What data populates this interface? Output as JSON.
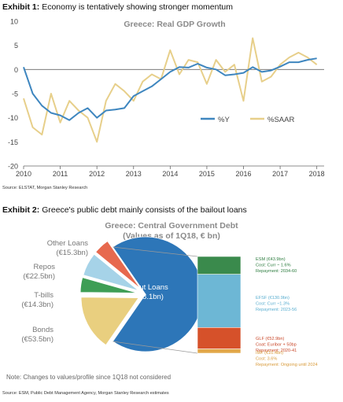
{
  "exhibit1": {
    "label": "Exhibit 1:",
    "caption": "Economy is tentatively showing stronger momentum",
    "source": "Source: ELSTAT, Morgan Stanley Research"
  },
  "exhibit2": {
    "label": "Exhibit 2:",
    "caption": "Greece's public debt mainly consists of the bailout loans",
    "source": "Source: ESM, Public Debt Management Agency, Morgan Stanley Research estimates",
    "note": "Note: Changes to values/profile since 1Q18 not considered"
  },
  "colors": {
    "y": "#3e86bf",
    "saar": "#e7cf8a",
    "axis_text": "#444444",
    "pie_bailout": "#2d76b8",
    "pie_bonds": "#e9cf7f",
    "pie_tbills": "#3e9e55",
    "pie_repos": "#a6d3e8",
    "pie_other": "#e7694e",
    "bar_esm": "#3a8a4c",
    "bar_efsf": "#6db7d5",
    "bar_glf": "#d6512a",
    "bar_imf": "#e2a84a"
  },
  "chart_data": [
    {
      "type": "line",
      "title": "Greece: Real GDP Growth",
      "xlim": [
        2010,
        2018.2
      ],
      "ylim": [
        -20,
        10
      ],
      "x_ticks": [
        2010,
        2011,
        2012,
        2013,
        2014,
        2015,
        2016,
        2017,
        2018
      ],
      "y_ticks": [
        -20,
        -15,
        -10,
        -5,
        0,
        5,
        10
      ],
      "legend_position": "lower-right",
      "x": [
        2010.0,
        2010.25,
        2010.5,
        2010.75,
        2011.0,
        2011.25,
        2011.5,
        2011.75,
        2012.0,
        2012.25,
        2012.5,
        2012.75,
        2013.0,
        2013.25,
        2013.5,
        2013.75,
        2014.0,
        2014.25,
        2014.5,
        2014.75,
        2015.0,
        2015.25,
        2015.5,
        2015.75,
        2016.0,
        2016.25,
        2016.5,
        2016.75,
        2017.0,
        2017.25,
        2017.5,
        2017.75,
        2018.0
      ],
      "series": [
        {
          "name": "%Y",
          "values": [
            0.5,
            -5.0,
            -7.5,
            -9.0,
            -9.5,
            -10.5,
            -9.0,
            -8.0,
            -10.0,
            -8.5,
            -8.3,
            -8.0,
            -5.5,
            -4.5,
            -3.5,
            -2.0,
            -0.5,
            0.5,
            0.4,
            1.2,
            0.4,
            0.0,
            -1.2,
            -1.0,
            -0.7,
            0.5,
            -0.5,
            -0.2,
            0.6,
            1.5,
            1.5,
            2.0,
            2.3
          ]
        },
        {
          "name": "%SAAR",
          "values": [
            -6.0,
            -12.0,
            -13.5,
            -5.0,
            -11.0,
            -6.5,
            -8.5,
            -10.0,
            -15.0,
            -6.5,
            -3.0,
            -4.5,
            -6.5,
            -2.5,
            -1.0,
            -2.0,
            4.0,
            -1.0,
            2.0,
            1.5,
            -3.0,
            2.0,
            -0.5,
            1.0,
            -6.5,
            6.5,
            -2.5,
            -1.5,
            1.0,
            2.5,
            3.5,
            2.5,
            1.0
          ]
        }
      ]
    },
    {
      "type": "pie",
      "title": "Greece: Central Government Debt",
      "subtitle": "(Values as of 1Q18, € bn)",
      "slices": [
        {
          "label": "Bailout Loans",
          "amount": "(€238.1bn)",
          "value": 238.1
        },
        {
          "label": "Bonds",
          "amount": "(€53.5bn)",
          "value": 53.5
        },
        {
          "label": "T-bills",
          "amount": "(€14.3bn)",
          "value": 14.3
        },
        {
          "label": "Repos",
          "amount": "(€22.5bn)",
          "value": 22.5
        },
        {
          "label": "Other Loans",
          "amount": "(€15.3bn)",
          "value": 15.3
        }
      ]
    },
    {
      "type": "bar",
      "stacked": true,
      "segments": [
        {
          "name": "ESM",
          "amount": "(€43.9bn)",
          "value": 43.9,
          "details": [
            "Cost: Curr ~ 1.6%",
            "Repayment: 2034-60"
          ]
        },
        {
          "name": "EFSF",
          "amount": "(€130.9bn)",
          "value": 130.9,
          "details": [
            "Cost: Curr ~1.3%",
            "Repayment: 2023-56"
          ]
        },
        {
          "name": "GLF",
          "amount": "(€52.9bn)",
          "value": 52.9,
          "details": [
            "Coat: Euribor + 50bp",
            "Repayment: 2020-41"
          ]
        },
        {
          "name": "IMF",
          "amount": "(€10.4bn)",
          "value": 10.4,
          "details": [
            "Cost: 3.6%",
            "Repayment: Ongoing until 2024"
          ]
        }
      ]
    }
  ]
}
